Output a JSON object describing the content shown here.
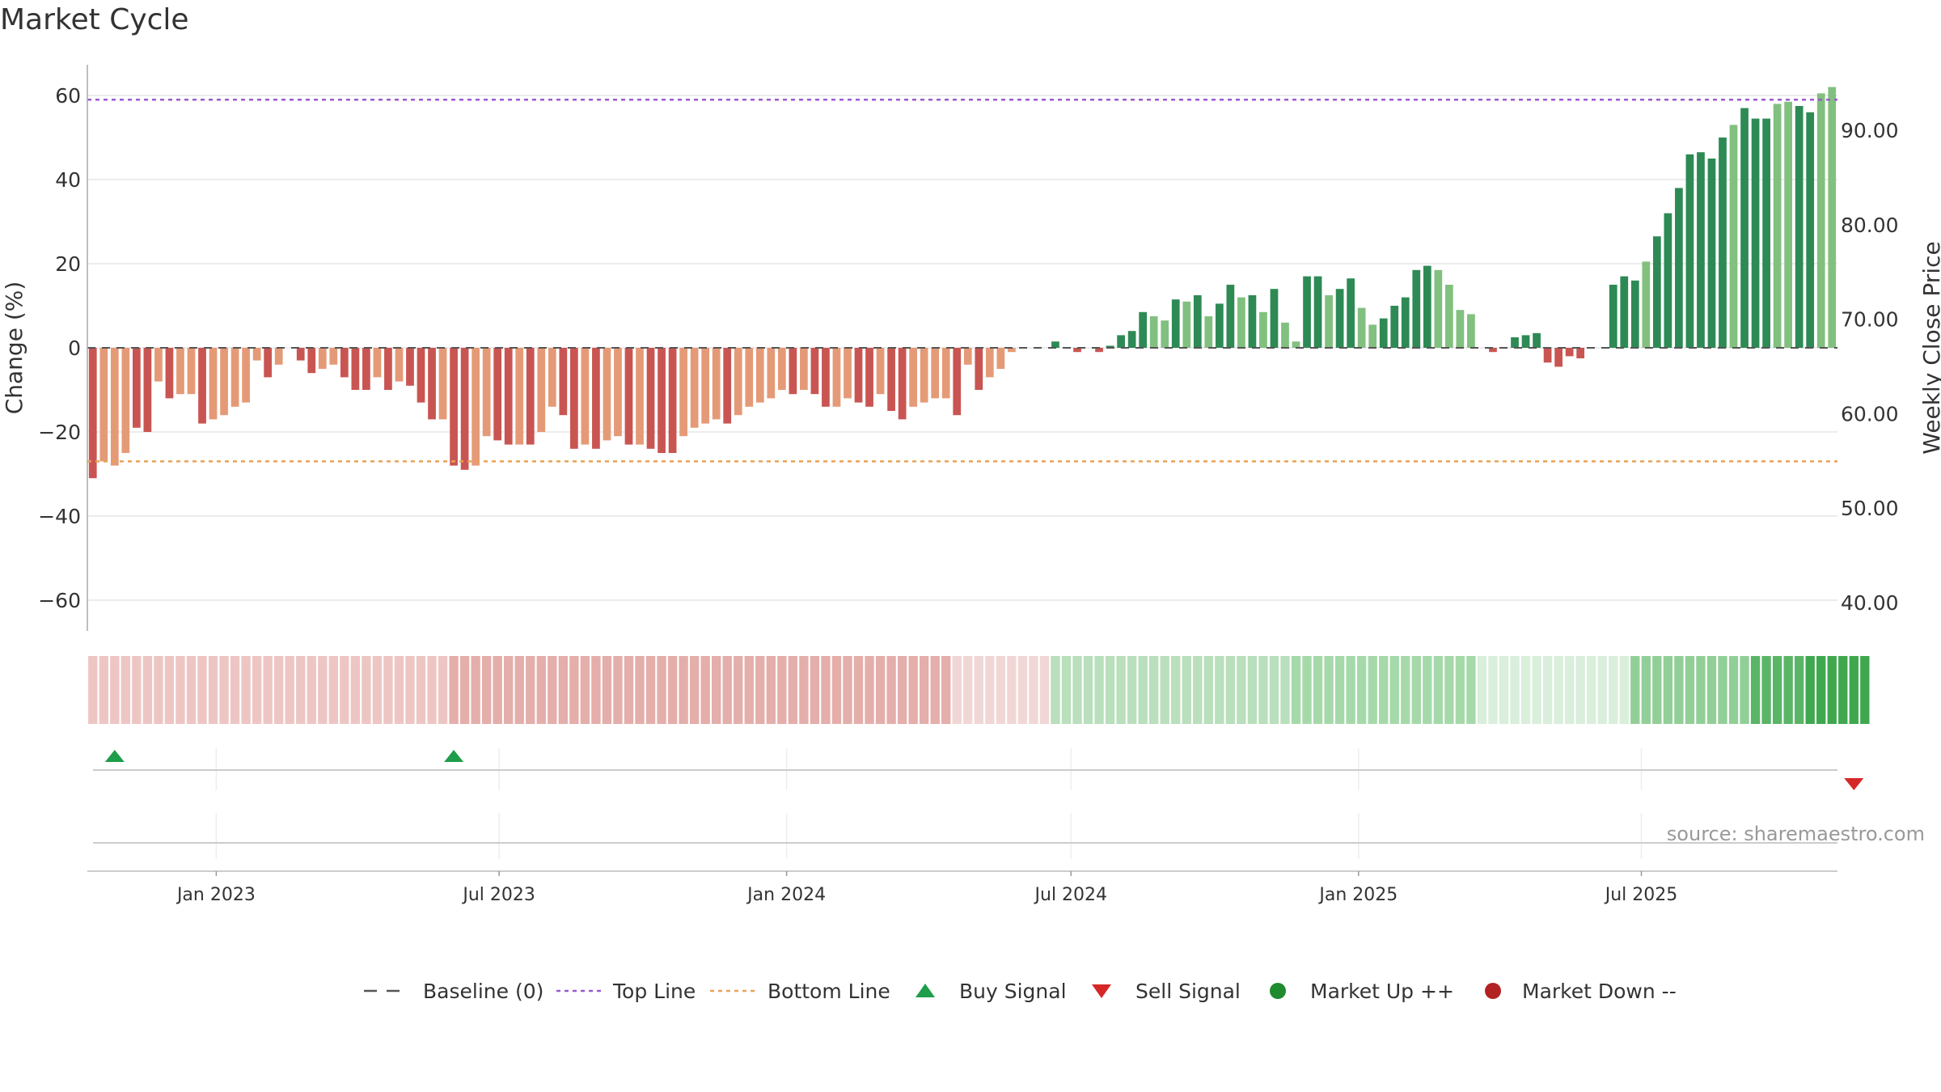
{
  "title": "Market Cycle",
  "source": "source: sharemaestro.com",
  "legend": [
    {
      "key": "baseline",
      "label": "Baseline (0)",
      "color": "#555555"
    },
    {
      "key": "top",
      "label": "Top Line",
      "color": "#9b59d0"
    },
    {
      "key": "bottom",
      "label": "Bottom Line",
      "color": "#e8a255"
    },
    {
      "key": "buy",
      "label": "Buy Signal",
      "color": "#1e9e4a"
    },
    {
      "key": "sell",
      "label": "Sell Signal",
      "color": "#d62728"
    },
    {
      "key": "up",
      "label": "Market Up ++",
      "color": "#1f8a2e"
    },
    {
      "key": "down",
      "label": "Market Down --",
      "color": "#b22222"
    }
  ],
  "chart_data": {
    "type": "bar",
    "title": "Market Cycle",
    "ylabel": "Change (%)",
    "y2label": "Weekly Close Price",
    "ylim": [
      -67,
      68
    ],
    "yticks": [
      60,
      40,
      20,
      0,
      -20,
      -40,
      -60
    ],
    "y2ticks": [
      "90.00",
      "80.00",
      "70.00",
      "60.00",
      "50.00",
      "40.00"
    ],
    "y2_tick_values": [
      90,
      80,
      70,
      60,
      50,
      40
    ],
    "xlabels": [
      "Jan 2023",
      "Jul 2023",
      "Jan 2024",
      "Jul 2024",
      "Jan 2025",
      "Jul 2025"
    ],
    "xlabel_dates": [
      "2023-01-01",
      "2023-07-01",
      "2024-01-01",
      "2024-07-01",
      "2025-01-01",
      "2025-07-01"
    ],
    "start_date": "2022-10-14",
    "week_days": 7,
    "top_line": 59,
    "bottom_line": -27,
    "colors": {
      "neg_strong": "#c95552",
      "neg_light": "#e59a77",
      "pos_strong": "#2e8a55",
      "pos_light": "#82c07f",
      "grid": "#e6e6e6",
      "baseline": "#555555",
      "top_line": "#9b59d0",
      "bottom_line": "#e8a255",
      "buy": "#1e9e4a",
      "sell": "#d62728"
    },
    "series": [
      {
        "name": "Change (%)",
        "values": [
          -31,
          -27,
          -28,
          -25,
          -19,
          -20,
          -8,
          -12,
          -11,
          -11,
          -18,
          -17,
          -16,
          -14,
          -13,
          -3,
          -7,
          -4,
          0,
          -3,
          -6,
          -5,
          -4,
          -7,
          -10,
          -10,
          -7,
          -10,
          -8,
          -9,
          -13,
          -17,
          -17,
          -28,
          -29,
          -28,
          -21,
          -22,
          -23,
          -23,
          -23,
          -20,
          -14,
          -16,
          -24,
          -23,
          -24,
          -22,
          -21,
          -23,
          -23,
          -24,
          -25,
          -25,
          -21,
          -19,
          -18,
          -17,
          -18,
          -16,
          -14,
          -13,
          -12,
          -10,
          -11,
          -10,
          -11,
          -14,
          -14,
          -12,
          -13,
          -14,
          -11,
          -15,
          -17,
          -14,
          -13,
          -12,
          -12,
          -16,
          -4,
          -10,
          -7,
          -5,
          -1,
          0,
          0,
          0,
          1.5,
          0,
          -1,
          0,
          -1,
          0.5,
          3,
          4,
          8.5,
          7.5,
          6.5,
          11.5,
          11,
          12.5,
          7.5,
          10.5,
          15,
          12,
          12.5,
          8.5,
          14,
          6,
          1.5,
          17,
          17,
          12.5,
          14,
          16.5,
          9.5,
          5.5,
          7,
          10,
          12,
          18.5,
          19.5,
          18.5,
          15,
          9,
          8,
          0,
          -1,
          0,
          2.5,
          3,
          3.5,
          -3.5,
          -4.5,
          -2,
          -2.5,
          0,
          0,
          15,
          17,
          16,
          20.5,
          26.5,
          32,
          38,
          46,
          46.5,
          45,
          50,
          53,
          57,
          54.5,
          54.5,
          58,
          58.5,
          57.5,
          56,
          60.5,
          62
        ],
        "light_flags": [
          0,
          1,
          1,
          1,
          0,
          0,
          1,
          0,
          1,
          1,
          0,
          1,
          1,
          1,
          1,
          1,
          0,
          1,
          0,
          0,
          0,
          1,
          1,
          0,
          0,
          0,
          1,
          0,
          1,
          0,
          0,
          0,
          1,
          0,
          0,
          1,
          1,
          0,
          0,
          1,
          0,
          1,
          1,
          0,
          0,
          1,
          0,
          1,
          1,
          0,
          1,
          0,
          0,
          0,
          1,
          1,
          1,
          1,
          0,
          1,
          1,
          1,
          1,
          1,
          0,
          1,
          0,
          0,
          1,
          1,
          0,
          0,
          1,
          0,
          0,
          1,
          1,
          1,
          1,
          0,
          1,
          0,
          1,
          1,
          1,
          0,
          0,
          0,
          0,
          0,
          0,
          0,
          0,
          0,
          0,
          0,
          0,
          1,
          1,
          0,
          1,
          0,
          1,
          0,
          0,
          1,
          0,
          1,
          0,
          1,
          1,
          0,
          0,
          1,
          0,
          0,
          1,
          1,
          0,
          0,
          0,
          0,
          0,
          1,
          1,
          1,
          1,
          0,
          0,
          0,
          0,
          0,
          0,
          0,
          0,
          0,
          0,
          0,
          0,
          0,
          0,
          0,
          1,
          0,
          0,
          0,
          0,
          0,
          0,
          0,
          1,
          0,
          0,
          0,
          1,
          1,
          0,
          0,
          1,
          1,
          0,
          0
        ]
      }
    ],
    "regime_strip": {
      "segments": [
        {
          "from": 0,
          "to": 33,
          "color": "#edc6c4"
        },
        {
          "from": 33,
          "to": 79,
          "color": "#e4aeab"
        },
        {
          "from": 79,
          "to": 88,
          "color": "#f0d7d6"
        },
        {
          "from": 88,
          "to": 110,
          "color": "#b9dfbc"
        },
        {
          "from": 110,
          "to": 127,
          "color": "#a6d9aa"
        },
        {
          "from": 127,
          "to": 141,
          "color": "#d9eedb"
        },
        {
          "from": 141,
          "to": 152,
          "color": "#92cf98"
        },
        {
          "from": 152,
          "to": 157,
          "color": "#5bb567"
        },
        {
          "from": 157,
          "to": 163,
          "color": "#3fa84f"
        }
      ]
    },
    "buy_signals": [
      2,
      33
    ],
    "sell_signals": [
      161
    ]
  }
}
